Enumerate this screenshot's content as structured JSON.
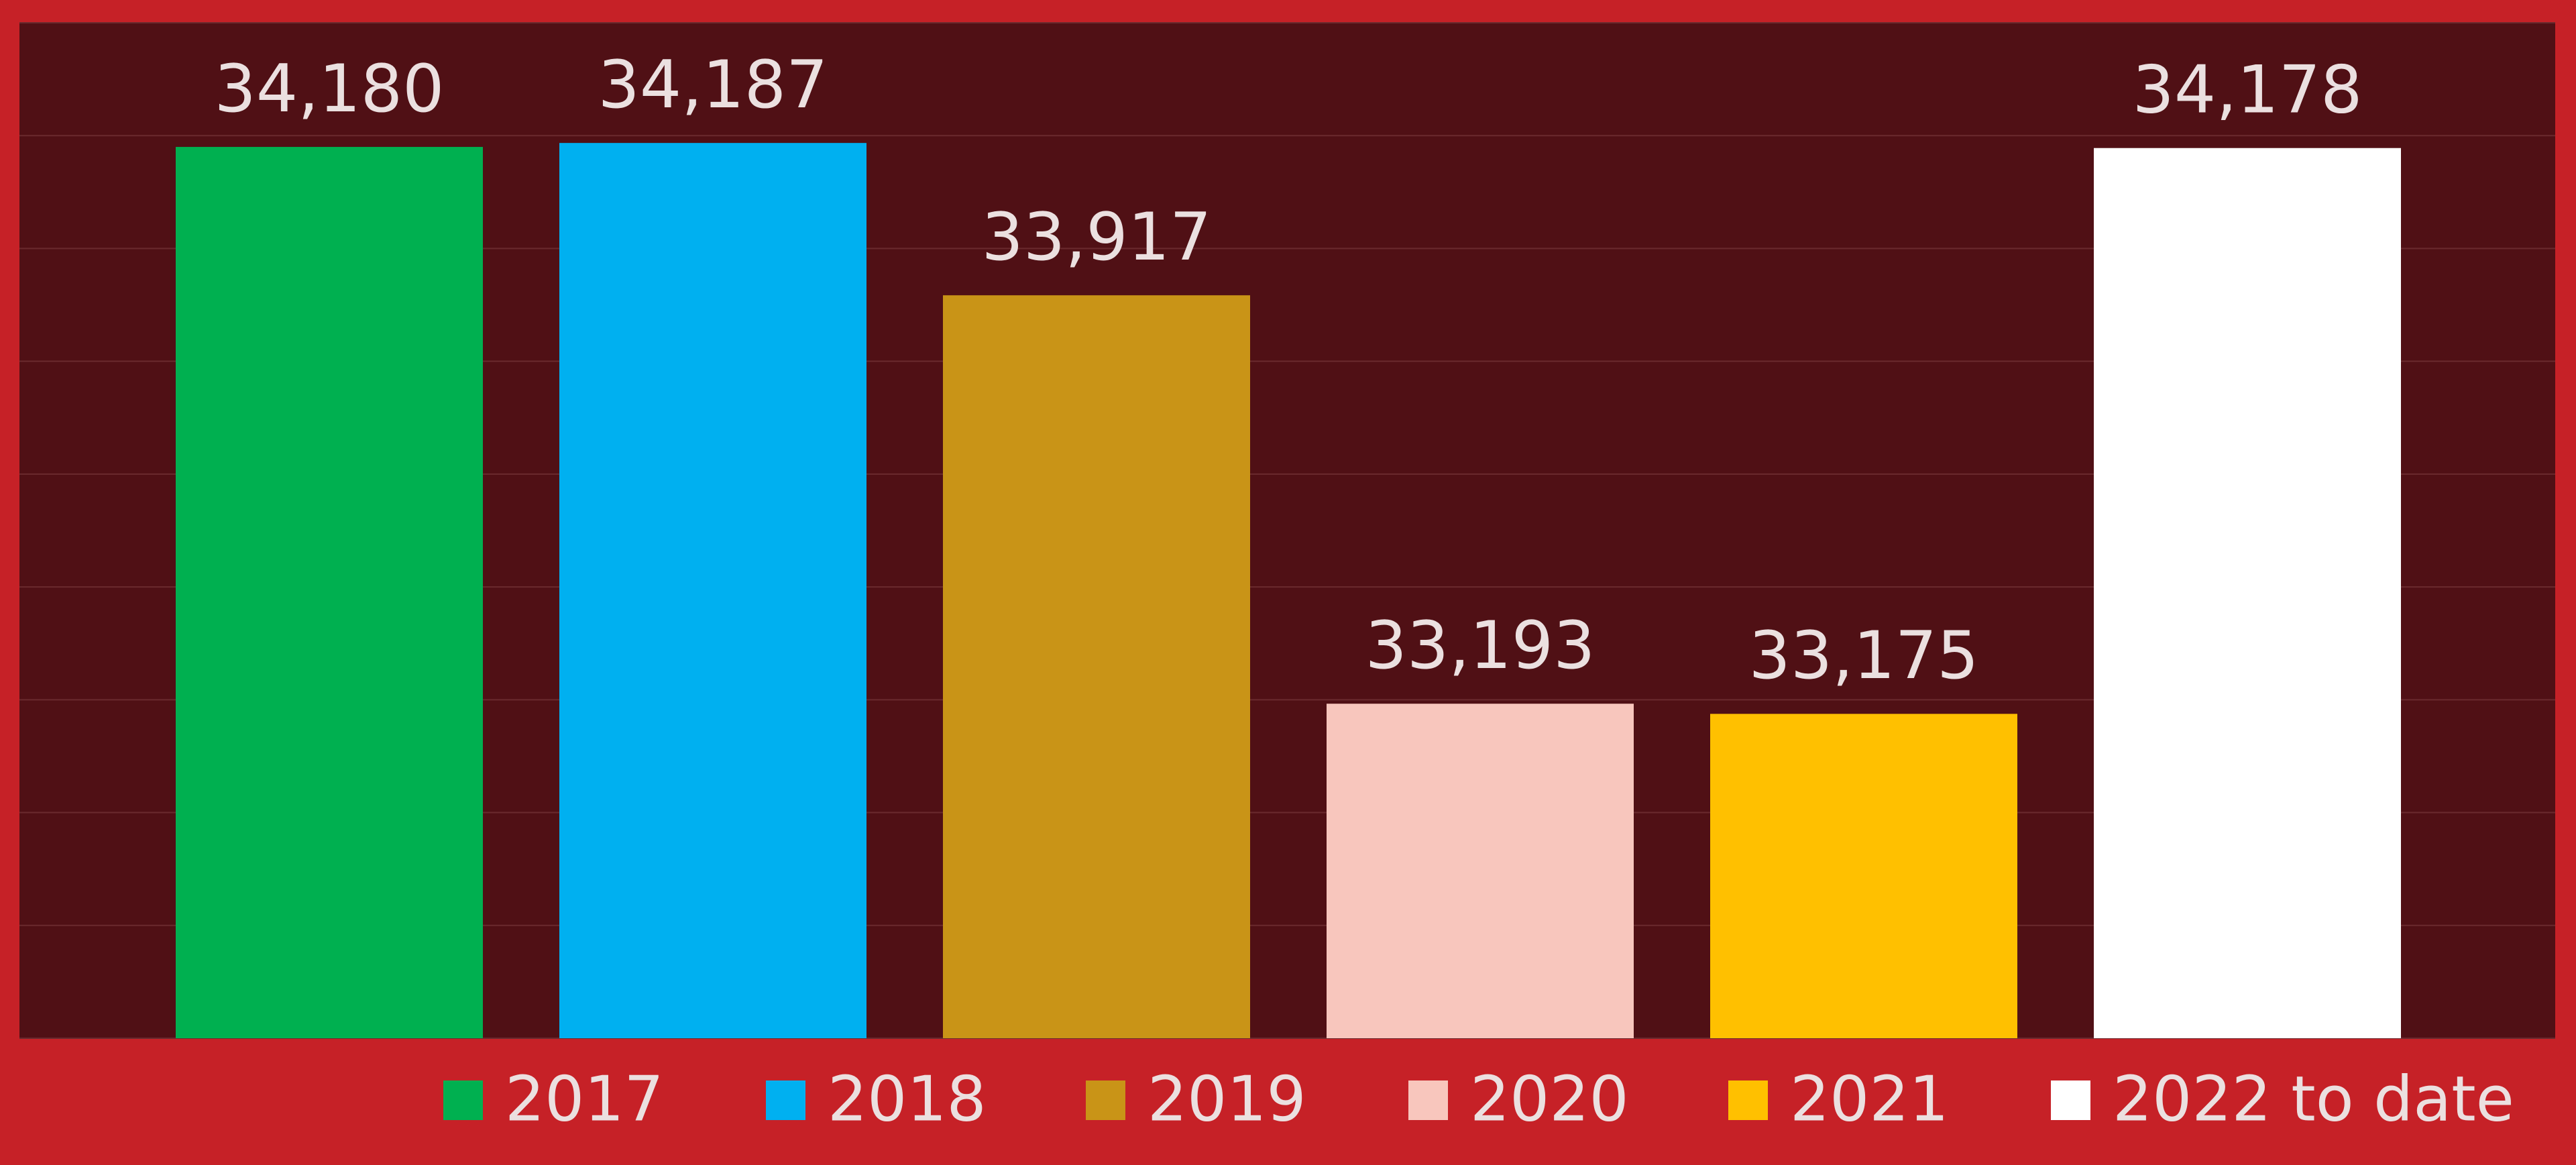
{
  "chart_data": {
    "type": "bar",
    "categories": [
      "2017",
      "2018",
      "2019",
      "2020",
      "2021",
      "2022 to date"
    ],
    "values": [
      34180,
      34187,
      33917,
      33193,
      33175,
      34178
    ],
    "value_labels": [
      "34,180",
      "34,187",
      "33,917",
      "33,193",
      "33,175",
      "34,178"
    ],
    "colors": [
      "#00b050",
      "#00b0f0",
      "#c99417",
      "#f8c6bd",
      "#ffc000",
      "#ffffff"
    ],
    "ylim": [
      32600,
      34400
    ],
    "yticks": [
      32600,
      32800,
      33000,
      33200,
      33400,
      33600,
      33800,
      34000,
      34200,
      34400
    ],
    "grid": true,
    "legend": "bottom"
  }
}
